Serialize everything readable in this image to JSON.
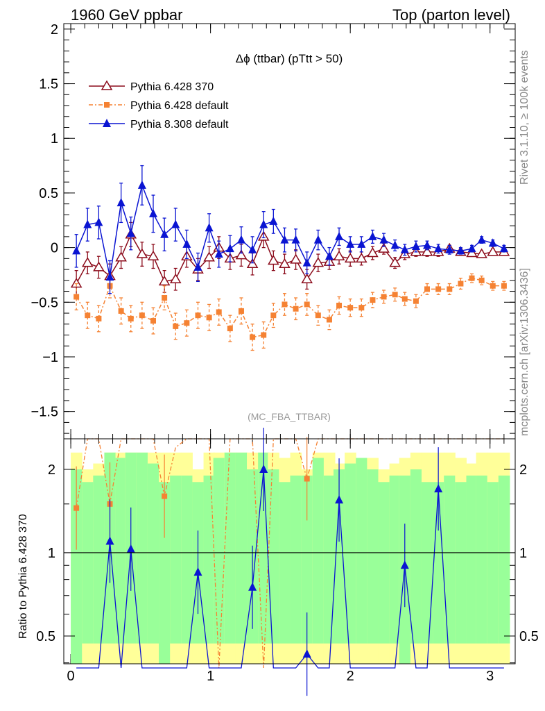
{
  "header": {
    "left": "1960 GeV ppbar",
    "right": "Top (parton level)"
  },
  "side_text": {
    "rivet": "Rivet 3.1.10, ≥ 100k events",
    "mcplots": "mcplots.cern.ch [arXiv:1306.3436]"
  },
  "chart_data": [
    {
      "type": "line",
      "title": "Δϕ (ttbar) (pTtt > 50)",
      "watermark": "(MC_FBA_TTBAR)",
      "xlabel": "",
      "ylabel": "",
      "xlim": [
        -0.05,
        3.18
      ],
      "ylim": [
        -1.75,
        2.05
      ],
      "xticks": [
        "0",
        "1",
        "2",
        "3"
      ],
      "yticks": [
        "−1.5",
        "−1",
        "−0.5",
        "0",
        "0.5",
        "1",
        "1.5",
        "2"
      ],
      "ytick_values": [
        -1.5,
        -1,
        -0.5,
        0,
        0.5,
        1,
        1.5,
        2
      ],
      "legend_position": "top-left",
      "x": [
        0.04,
        0.12,
        0.2,
        0.28,
        0.36,
        0.43,
        0.51,
        0.59,
        0.67,
        0.75,
        0.83,
        0.91,
        0.99,
        1.06,
        1.14,
        1.22,
        1.3,
        1.38,
        1.45,
        1.53,
        1.61,
        1.69,
        1.77,
        1.85,
        1.92,
        2.0,
        2.08,
        2.16,
        2.24,
        2.32,
        2.39,
        2.47,
        2.55,
        2.63,
        2.71,
        2.79,
        2.87,
        2.94,
        3.02,
        3.1
      ],
      "series": [
        {
          "name": "Pythia 6.428 370",
          "color": "#8b0a1a",
          "marker": "open-triangle",
          "dash": "",
          "values": [
            -0.33,
            -0.14,
            -0.18,
            -0.26,
            -0.09,
            0.12,
            -0.06,
            -0.08,
            -0.31,
            -0.29,
            -0.08,
            -0.2,
            -0.09,
            0.0,
            -0.1,
            -0.07,
            -0.15,
            0.1,
            -0.12,
            -0.15,
            -0.11,
            -0.29,
            -0.14,
            -0.13,
            -0.08,
            -0.1,
            -0.1,
            -0.05,
            -0.01,
            -0.14,
            -0.06,
            -0.04,
            -0.04,
            -0.04,
            -0.01,
            -0.04,
            -0.05,
            -0.06,
            -0.04,
            -0.04
          ],
          "errors": [
            0.12,
            0.1,
            0.1,
            0.11,
            0.1,
            0.11,
            0.11,
            0.11,
            0.1,
            0.1,
            0.1,
            0.1,
            0.1,
            0.1,
            0.1,
            0.1,
            0.1,
            0.1,
            0.09,
            0.09,
            0.09,
            0.09,
            0.08,
            0.07,
            0.07,
            0.07,
            0.06,
            0.06,
            0.05,
            0.05,
            0.05,
            0.04,
            0.04,
            0.04,
            0.03,
            0.03,
            0.03,
            0.03,
            0.03,
            0.03
          ]
        },
        {
          "name": "Pythia 6.428 default",
          "color": "#f58233",
          "marker": "filled-square",
          "dash": "6,3,2,3",
          "values": [
            -0.45,
            -0.62,
            -0.65,
            -0.35,
            -0.58,
            -0.65,
            -0.62,
            -0.67,
            -0.46,
            -0.72,
            -0.69,
            -0.62,
            -0.64,
            -0.59,
            -0.74,
            -0.58,
            -0.82,
            -0.8,
            -0.62,
            -0.52,
            -0.56,
            -0.52,
            -0.62,
            -0.66,
            -0.53,
            -0.55,
            -0.55,
            -0.48,
            -0.45,
            -0.43,
            -0.47,
            -0.49,
            -0.38,
            -0.38,
            -0.38,
            -0.33,
            -0.28,
            -0.3,
            -0.35,
            -0.35
          ],
          "errors": [
            0.12,
            0.12,
            0.12,
            0.11,
            0.12,
            0.12,
            0.12,
            0.12,
            0.11,
            0.12,
            0.12,
            0.12,
            0.12,
            0.12,
            0.12,
            0.12,
            0.12,
            0.12,
            0.11,
            0.1,
            0.1,
            0.1,
            0.09,
            0.09,
            0.08,
            0.08,
            0.08,
            0.07,
            0.06,
            0.06,
            0.06,
            0.06,
            0.05,
            0.05,
            0.05,
            0.05,
            0.04,
            0.04,
            0.04,
            0.04
          ]
        },
        {
          "name": "Pythia 8.308 default",
          "color": "#0a14d2",
          "marker": "filled-triangle",
          "dash": "",
          "values": [
            -0.03,
            0.21,
            0.23,
            -0.27,
            0.41,
            0.13,
            0.57,
            0.31,
            0.12,
            0.21,
            0.03,
            -0.18,
            0.18,
            -0.06,
            -0.01,
            0.07,
            -0.02,
            0.21,
            0.24,
            0.07,
            0.07,
            -0.14,
            0.07,
            -0.08,
            0.1,
            0.03,
            0.03,
            0.1,
            0.07,
            0.02,
            -0.02,
            0.01,
            0.02,
            -0.01,
            -0.02,
            -0.03,
            -0.01,
            0.07,
            0.04,
            -0.01
          ],
          "errors": [
            0.15,
            0.15,
            0.15,
            0.15,
            0.18,
            0.15,
            0.18,
            0.17,
            0.15,
            0.15,
            0.13,
            0.13,
            0.13,
            0.12,
            0.12,
            0.12,
            0.12,
            0.12,
            0.11,
            0.11,
            0.1,
            0.1,
            0.09,
            0.08,
            0.08,
            0.07,
            0.07,
            0.06,
            0.06,
            0.05,
            0.05,
            0.05,
            0.04,
            0.04,
            0.04,
            0.03,
            0.03,
            0.03,
            0.03,
            0.03
          ]
        }
      ]
    },
    {
      "type": "line",
      "title": "",
      "xlabel": "",
      "ylabel": "Ratio to Pythia 6.428 370",
      "xlim": [
        -0.05,
        3.18
      ],
      "ylim": [
        0.35,
        2.25
      ],
      "xticks": [
        "0",
        "1",
        "2",
        "3"
      ],
      "yticks": [
        "0.5",
        "1",
        "2"
      ],
      "ytick_values": [
        0.5,
        1,
        2
      ],
      "reference_line": 1,
      "series": [
        {
          "name": "Pythia 6.428 default",
          "color": "#f58233",
          "values": [
            1.45,
            2.6,
            2.6,
            1.5,
            2.6,
            2.6,
            2.6,
            2.6,
            1.6,
            2.4,
            2.6,
            2.6,
            2.6,
            0.3,
            2.6,
            2.6,
            2.6,
            0.3,
            2.6,
            2.6,
            2.6,
            1.85,
            2.6,
            2.6,
            2.6,
            2.6,
            2.6,
            2.6,
            2.6,
            2.6,
            2.6,
            2.6,
            2.6,
            2.6,
            2.6,
            2.6,
            2.6,
            2.6,
            2.6,
            2.6
          ]
        },
        {
          "name": "Pythia 8.308 default",
          "color": "#0a14d2",
          "values": [
            0.3,
            0.3,
            0.3,
            1.1,
            0.3,
            1.03,
            0.3,
            0.3,
            0.3,
            0.3,
            0.3,
            0.85,
            0.3,
            0.3,
            0.3,
            0.3,
            0.75,
            2.0,
            0.3,
            0.3,
            0.3,
            0.43,
            0.3,
            0.3,
            1.55,
            0.3,
            0.3,
            0.3,
            0.3,
            0.3,
            0.9,
            0.3,
            0.3,
            1.7,
            0.3,
            0.3,
            0.3,
            0.3,
            0.3,
            0.3
          ]
        }
      ]
    }
  ]
}
